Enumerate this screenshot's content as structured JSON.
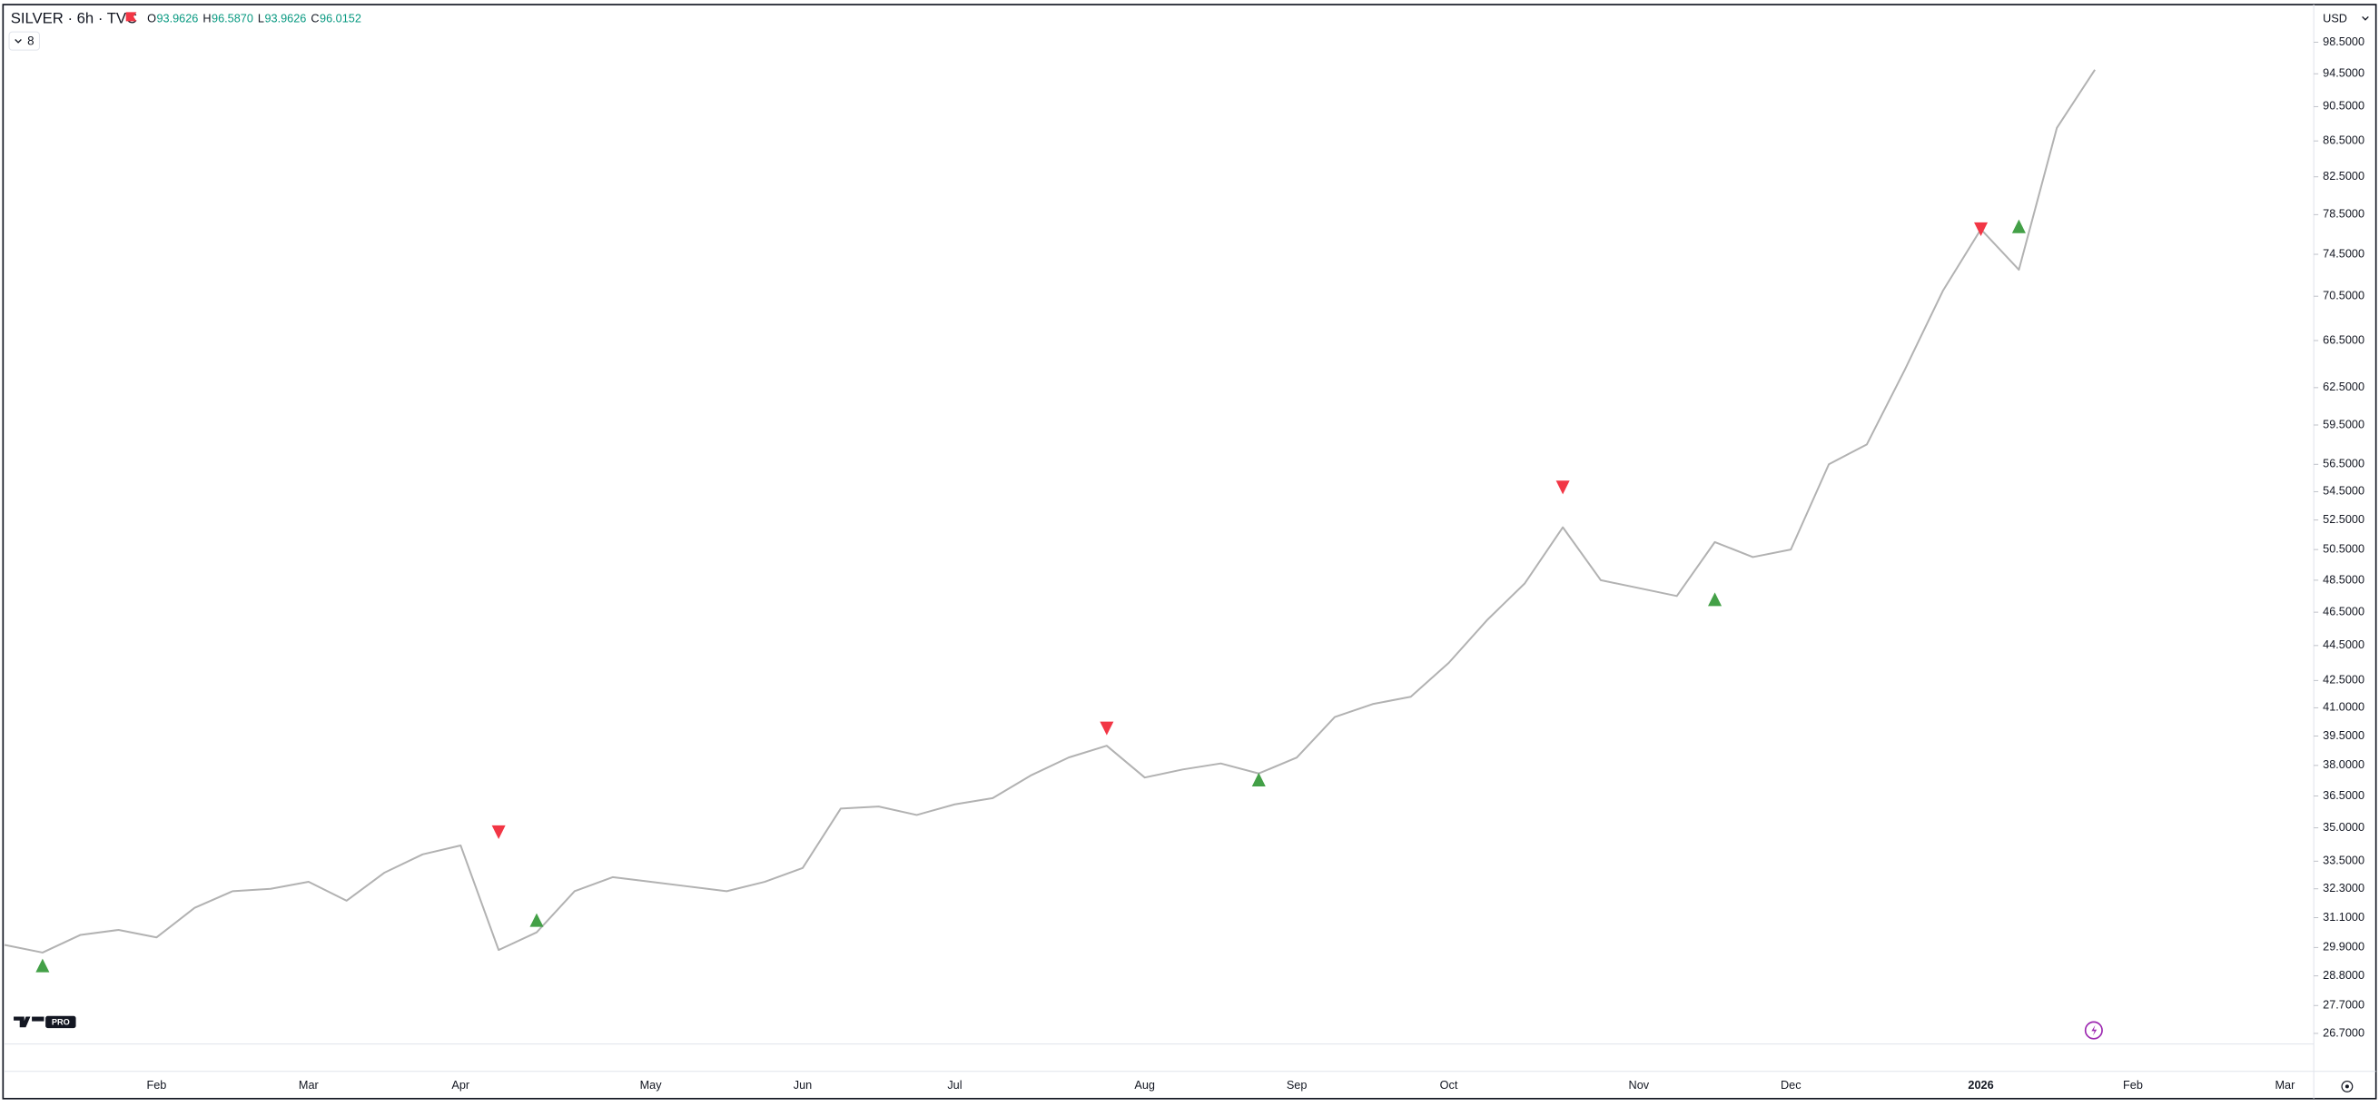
{
  "header": {
    "symbol": "SILVER · 6h · TVC",
    "ohlc": [
      {
        "key": "O",
        "value": "93.9626"
      },
      {
        "key": "H",
        "value": "96.5870"
      },
      {
        "key": "L",
        "value": "93.9626"
      },
      {
        "key": "C",
        "value": "96.0152"
      }
    ],
    "indicators_count": "8",
    "currency": "USD",
    "logo_badge": "PRO"
  },
  "chart_data": {
    "type": "line",
    "log_scale": true,
    "grid": false,
    "categories": [
      null,
      null,
      null,
      null,
      "Feb",
      null,
      null,
      null,
      "Mar",
      null,
      null,
      null,
      "Apr",
      null,
      null,
      null,
      null,
      "May",
      null,
      null,
      null,
      "Jun",
      null,
      null,
      null,
      "Jul",
      null,
      null,
      null,
      null,
      "Aug",
      null,
      null,
      null,
      "Sep",
      null,
      null,
      null,
      "Oct",
      null,
      null,
      null,
      null,
      "Nov",
      null,
      null,
      null,
      "Dec",
      null,
      null,
      null,
      null,
      "2026",
      null,
      null,
      null,
      "Feb",
      null,
      null,
      null,
      "Mar"
    ],
    "series": [
      {
        "type": "line",
        "color": "#b2b2b2",
        "values": [
          30.0,
          29.7,
          30.4,
          30.6,
          30.3,
          31.5,
          32.2,
          32.3,
          32.6,
          31.8,
          33.0,
          33.8,
          34.2,
          29.8,
          30.5,
          32.2,
          32.8,
          32.6,
          32.4,
          32.2,
          32.6,
          33.2,
          35.9,
          36.0,
          35.6,
          36.1,
          36.4,
          37.5,
          38.4,
          39.0,
          37.4,
          37.8,
          38.1,
          37.6,
          38.4,
          40.5,
          41.2,
          41.6,
          43.5,
          46.0,
          48.3,
          52.0,
          48.5,
          48.0,
          47.5,
          51.0,
          50.0,
          50.5,
          56.5,
          58.0,
          64.0,
          71.0,
          77.0,
          73.0,
          88.0,
          95.0,
          null,
          null,
          null,
          null,
          null
        ]
      },
      {
        "type": "scatter",
        "marker": "triangle-up",
        "color": "#43a047",
        "values": [
          null,
          29.2,
          null,
          null,
          null,
          null,
          null,
          null,
          null,
          null,
          null,
          null,
          null,
          null,
          31.0,
          null,
          null,
          null,
          null,
          null,
          null,
          null,
          null,
          null,
          null,
          null,
          null,
          null,
          null,
          null,
          null,
          null,
          null,
          37.3,
          null,
          null,
          null,
          null,
          null,
          null,
          null,
          null,
          null,
          null,
          null,
          47.3,
          null,
          null,
          null,
          null,
          null,
          null,
          null,
          77.3,
          null,
          null,
          null,
          null,
          null,
          null,
          null
        ]
      },
      {
        "type": "scatter",
        "marker": "triangle-down",
        "color": "#f23645",
        "values": [
          null,
          null,
          null,
          null,
          null,
          null,
          null,
          null,
          null,
          null,
          null,
          null,
          null,
          34.8,
          null,
          null,
          null,
          null,
          null,
          null,
          null,
          null,
          null,
          null,
          null,
          null,
          null,
          null,
          null,
          39.9,
          null,
          null,
          null,
          null,
          null,
          null,
          null,
          null,
          null,
          null,
          null,
          54.8,
          null,
          null,
          null,
          null,
          null,
          null,
          null,
          null,
          null,
          null,
          77.0,
          null,
          null,
          null,
          null,
          null,
          null,
          null,
          null
        ]
      }
    ],
    "ylim": [
      26.33,
      103.1
    ],
    "yticks": [
      {
        "value": 26.7,
        "label": "26.7000"
      },
      {
        "value": 27.7,
        "label": "27.7000"
      },
      {
        "value": 28.8,
        "label": "28.8000"
      },
      {
        "value": 29.9,
        "label": "29.9000"
      },
      {
        "value": 31.1,
        "label": "31.1000"
      },
      {
        "value": 32.3,
        "label": "32.3000"
      },
      {
        "value": 33.5,
        "label": "33.5000"
      },
      {
        "value": 35.0,
        "label": "35.0000"
      },
      {
        "value": 36.5,
        "label": "36.5000"
      },
      {
        "value": 38.0,
        "label": "38.0000"
      },
      {
        "value": 39.5,
        "label": "39.5000"
      },
      {
        "value": 41.0,
        "label": "41.0000"
      },
      {
        "value": 42.5,
        "label": "42.5000"
      },
      {
        "value": 44.5,
        "label": "44.5000"
      },
      {
        "value": 46.5,
        "label": "46.5000"
      },
      {
        "value": 48.5,
        "label": "48.5000"
      },
      {
        "value": 50.5,
        "label": "50.5000"
      },
      {
        "value": 52.5,
        "label": "52.5000"
      },
      {
        "value": 54.5,
        "label": "54.5000"
      },
      {
        "value": 56.5,
        "label": "56.5000"
      },
      {
        "value": 59.5,
        "label": "59.5000"
      },
      {
        "value": 62.5,
        "label": "62.5000"
      },
      {
        "value": 66.5,
        "label": "66.5000"
      },
      {
        "value": 70.5,
        "label": "70.5000"
      },
      {
        "value": 74.5,
        "label": "74.5000"
      },
      {
        "value": 78.5,
        "label": "78.5000"
      },
      {
        "value": 82.5,
        "label": "82.5000"
      },
      {
        "value": 86.5,
        "label": "86.5000"
      },
      {
        "value": 90.5,
        "label": "90.5000"
      },
      {
        "value": 94.5,
        "label": "94.5000"
      },
      {
        "value": 98.5,
        "label": "98.5000"
      }
    ]
  }
}
